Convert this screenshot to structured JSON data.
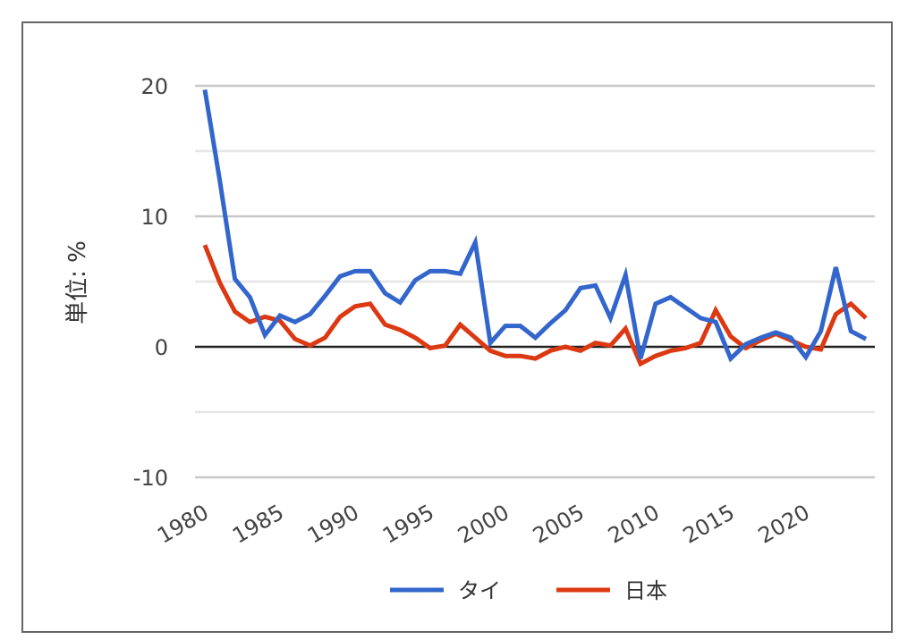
{
  "chart_data": {
    "type": "line",
    "title": "",
    "xlabel": "",
    "ylabel": "単位: %",
    "ylim": [
      -10,
      20
    ],
    "yticks": [
      "20",
      "10",
      "0",
      "-10"
    ],
    "ytick_values": [
      20,
      10,
      0,
      -10
    ],
    "xticks": [
      "1980",
      "1985",
      "1990",
      "1995",
      "2000",
      "2005",
      "2010",
      "2015",
      "2020"
    ],
    "xtick_values": [
      1980,
      1985,
      1990,
      1995,
      2000,
      2005,
      2010,
      2015,
      2020
    ],
    "xlim": [
      1980,
      2024
    ],
    "grid": true,
    "legend_position": "bottom",
    "x": [
      1980,
      1981,
      1982,
      1983,
      1984,
      1985,
      1986,
      1987,
      1988,
      1989,
      1990,
      1991,
      1992,
      1993,
      1994,
      1995,
      1996,
      1997,
      1998,
      1999,
      2000,
      2001,
      2002,
      2003,
      2004,
      2005,
      2006,
      2007,
      2008,
      2009,
      2010,
      2011,
      2012,
      2013,
      2014,
      2015,
      2016,
      2017,
      2018,
      2019,
      2020,
      2021,
      2022,
      2023,
      2024
    ],
    "series": [
      {
        "name": "タイ",
        "color": "#3366cc",
        "values": [
          19.7,
          12.7,
          5.2,
          3.8,
          0.9,
          2.4,
          1.9,
          2.5,
          3.9,
          5.4,
          5.8,
          5.8,
          4.1,
          3.4,
          5.1,
          5.8,
          5.8,
          5.6,
          8.0,
          0.3,
          1.6,
          1.6,
          0.7,
          1.8,
          2.8,
          4.5,
          4.7,
          2.2,
          5.5,
          -0.9,
          3.3,
          3.8,
          3.0,
          2.2,
          1.9,
          -0.9,
          0.2,
          0.7,
          1.1,
          0.7,
          -0.8,
          1.2,
          6.1,
          1.2,
          0.6
        ]
      },
      {
        "name": "日本",
        "color": "#dc3912",
        "values": [
          7.8,
          4.9,
          2.7,
          1.9,
          2.3,
          2.0,
          0.6,
          0.1,
          0.7,
          2.3,
          3.1,
          3.3,
          1.7,
          1.3,
          0.7,
          -0.1,
          0.1,
          1.7,
          0.7,
          -0.3,
          -0.7,
          -0.7,
          -0.9,
          -0.3,
          0.0,
          -0.3,
          0.3,
          0.1,
          1.4,
          -1.3,
          -0.7,
          -0.3,
          -0.1,
          0.3,
          2.8,
          0.8,
          -0.1,
          0.5,
          1.0,
          0.5,
          0.0,
          -0.2,
          2.5,
          3.3,
          2.2
        ]
      }
    ]
  }
}
